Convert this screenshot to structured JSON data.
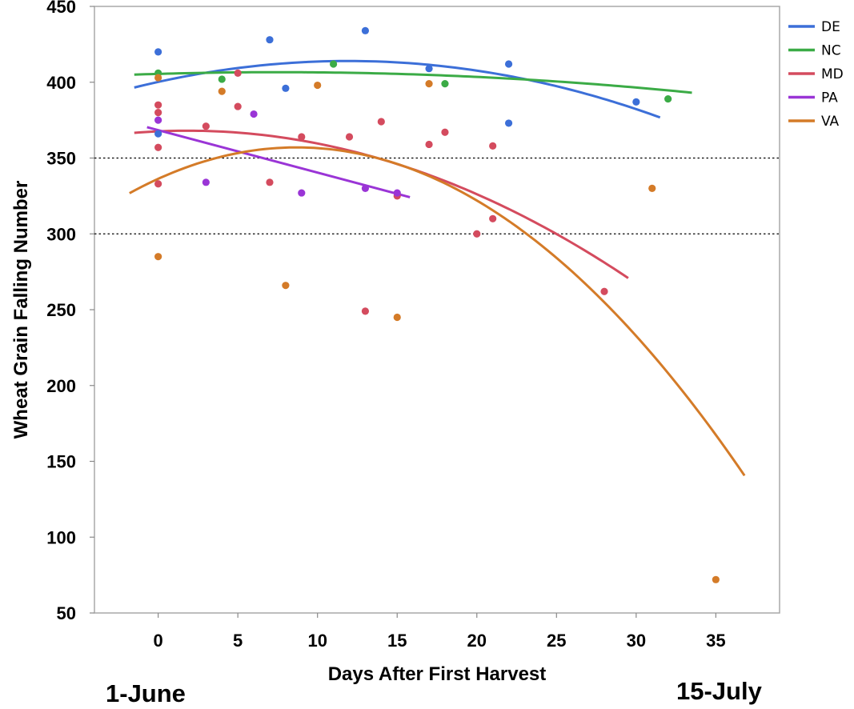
{
  "chart_data": {
    "type": "scatter",
    "title": "",
    "xlabel": "Days After First Harvest",
    "ylabel": "Wheat Grain Falling Number",
    "xlim": [
      -4,
      39
    ],
    "ylim": [
      50,
      450
    ],
    "xticks": [
      0,
      5,
      10,
      15,
      20,
      25,
      30,
      35
    ],
    "yticks": [
      50,
      100,
      150,
      200,
      250,
      300,
      350,
      400,
      450
    ],
    "reference_lines": [
      300,
      350
    ],
    "grid": false,
    "legend_position": "top-right",
    "series": [
      {
        "name": "DE",
        "color": "#3c6fd8",
        "points": [
          [
            0,
            420
          ],
          [
            0,
            366
          ],
          [
            7,
            428
          ],
          [
            8,
            396
          ],
          [
            13,
            434
          ],
          [
            17,
            409
          ],
          [
            22,
            412
          ],
          [
            22,
            373
          ],
          [
            30,
            387
          ]
        ],
        "fit": {
          "x_range": [
            -1.5,
            31.5
          ],
          "a": -0.0971,
          "b": 2.315,
          "c": 400.2
        }
      },
      {
        "name": "NC",
        "color": "#3bab46",
        "points": [
          [
            0,
            406
          ],
          [
            4,
            402
          ],
          [
            11,
            412
          ],
          [
            18,
            399
          ],
          [
            32,
            389
          ]
        ],
        "fit": {
          "x_range": [
            -1.5,
            33.5
          ],
          "a": -0.02,
          "b": 0.3,
          "c": 405.5
        }
      },
      {
        "name": "MD",
        "color": "#d44b5e",
        "points": [
          [
            0,
            385
          ],
          [
            0,
            380
          ],
          [
            0,
            357
          ],
          [
            0,
            333
          ],
          [
            3,
            371
          ],
          [
            5,
            384
          ],
          [
            5,
            406
          ],
          [
            7,
            334
          ],
          [
            9,
            364
          ],
          [
            12,
            364
          ],
          [
            13,
            249
          ],
          [
            14,
            374
          ],
          [
            15,
            325
          ],
          [
            17,
            359
          ],
          [
            18,
            367
          ],
          [
            20,
            300
          ],
          [
            21,
            358
          ],
          [
            21,
            310
          ],
          [
            28,
            262
          ]
        ],
        "fit": {
          "x_range": [
            -1.5,
            29.5
          ],
          "a": -0.1271,
          "b": 0.47,
          "c": 367.6
        }
      },
      {
        "name": "PA",
        "color": "#9a35d6",
        "points": [
          [
            0,
            375
          ],
          [
            3,
            334
          ],
          [
            6,
            379
          ],
          [
            9,
            327
          ],
          [
            13,
            330
          ],
          [
            15,
            327
          ]
        ],
        "fit": {
          "x_range": [
            -0.7,
            15.8
          ],
          "a": 0,
          "b": -2.8,
          "c": 368.4
        }
      },
      {
        "name": "VA",
        "color": "#d47b28",
        "points": [
          [
            0,
            403
          ],
          [
            0,
            285
          ],
          [
            4,
            394
          ],
          [
            8,
            266
          ],
          [
            10,
            398
          ],
          [
            15,
            245
          ],
          [
            17,
            399
          ],
          [
            31,
            330
          ],
          [
            35,
            72
          ]
        ],
        "fit": {
          "x_range": [
            -1.8,
            36.8
          ],
          "a": -0.274,
          "b": 4.765,
          "c": 336.3
        }
      }
    ]
  },
  "labels": {
    "date_start": "1-June",
    "date_end": "15-July"
  }
}
